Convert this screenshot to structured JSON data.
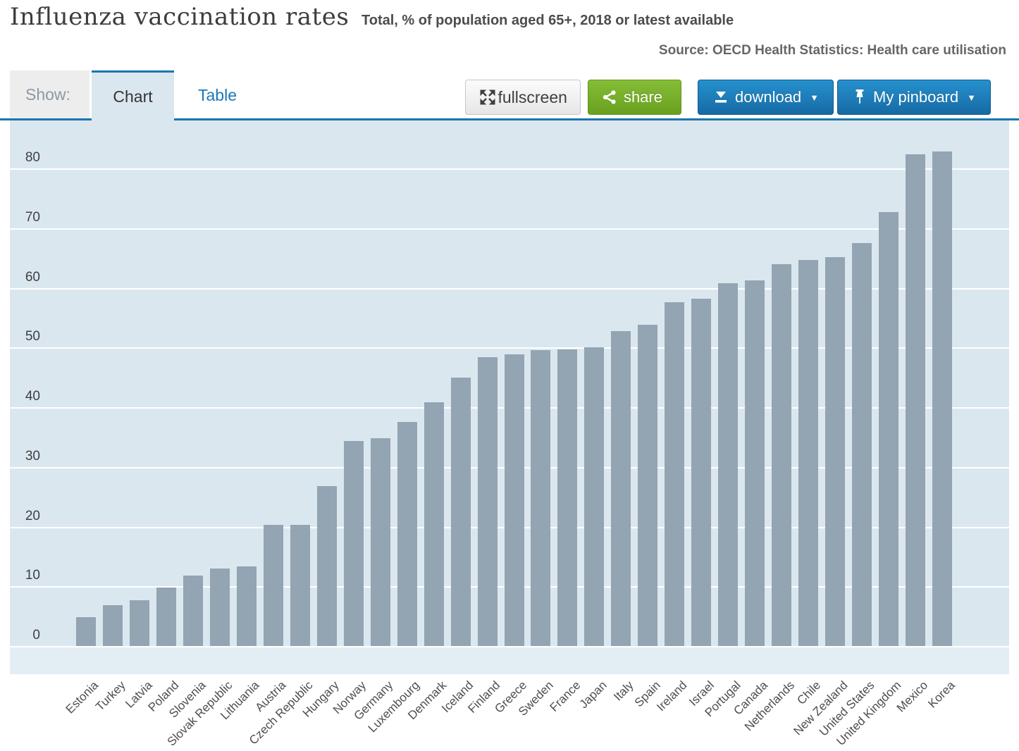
{
  "header": {
    "title": "Influenza vaccination rates",
    "subtitle": "Total, % of population aged 65+, 2018 or latest available",
    "source": "Source: OECD Health Statistics: Health care utilisation"
  },
  "toolbar": {
    "show_label": "Show:",
    "tabs": [
      {
        "label": "Chart",
        "active": true
      },
      {
        "label": "Table",
        "active": false
      }
    ],
    "buttons": {
      "fullscreen": "fullscreen",
      "share": "share",
      "download": "download",
      "pinboard": "My pinboard",
      "caret": "▼"
    }
  },
  "colors": {
    "accent_blue": "#1d76ae",
    "button_blue_top": "#2591ce",
    "button_blue_bottom": "#176aa4",
    "button_green_top": "#86bd37",
    "button_green_bottom": "#69a01f",
    "plot_background": "#dbe7ef",
    "axis_band": "#e3edf4",
    "gridline": "#ffffff",
    "bar": "#93a4b2"
  },
  "chart_data": {
    "type": "bar",
    "title": "Influenza vaccination rates",
    "subtitle": "Total, % of population aged 65+, 2018 or latest available",
    "source": "Source: OECD Health Statistics: Health care utilisation",
    "unit": "% of population aged 65+",
    "categories": [
      "Estonia",
      "Turkey",
      "Latvia",
      "Poland",
      "Slovenia",
      "Slovak Republic",
      "Lithuania",
      "Austria",
      "Czech Republic",
      "Hungary",
      "Norway",
      "Germany",
      "Luxembourg",
      "Denmark",
      "Iceland",
      "Finland",
      "Greece",
      "Sweden",
      "France",
      "Japan",
      "Italy",
      "Spain",
      "Ireland",
      "Israel",
      "Portugal",
      "Canada",
      "Netherlands",
      "Chile",
      "New Zealand",
      "United States",
      "United Kingdom",
      "Mexico",
      "Korea"
    ],
    "values": [
      4.8,
      6.9,
      7.7,
      9.8,
      11.8,
      13.0,
      13.3,
      20.3,
      20.3,
      26.8,
      34.3,
      34.8,
      37.5,
      40.8,
      45.0,
      48.4,
      48.8,
      49.5,
      49.7,
      50.0,
      52.8,
      53.8,
      57.6,
      58.2,
      60.8,
      61.2,
      64.0,
      64.7,
      65.1,
      67.5,
      72.7,
      82.4,
      82.8
    ],
    "xlabel": "",
    "ylabel": "",
    "ylim": [
      0,
      88
    ],
    "yticks": [
      0,
      10,
      20,
      30,
      40,
      50,
      60,
      70,
      80
    ],
    "grid": true,
    "legend": "none",
    "bar_color": "#93a4b2"
  }
}
